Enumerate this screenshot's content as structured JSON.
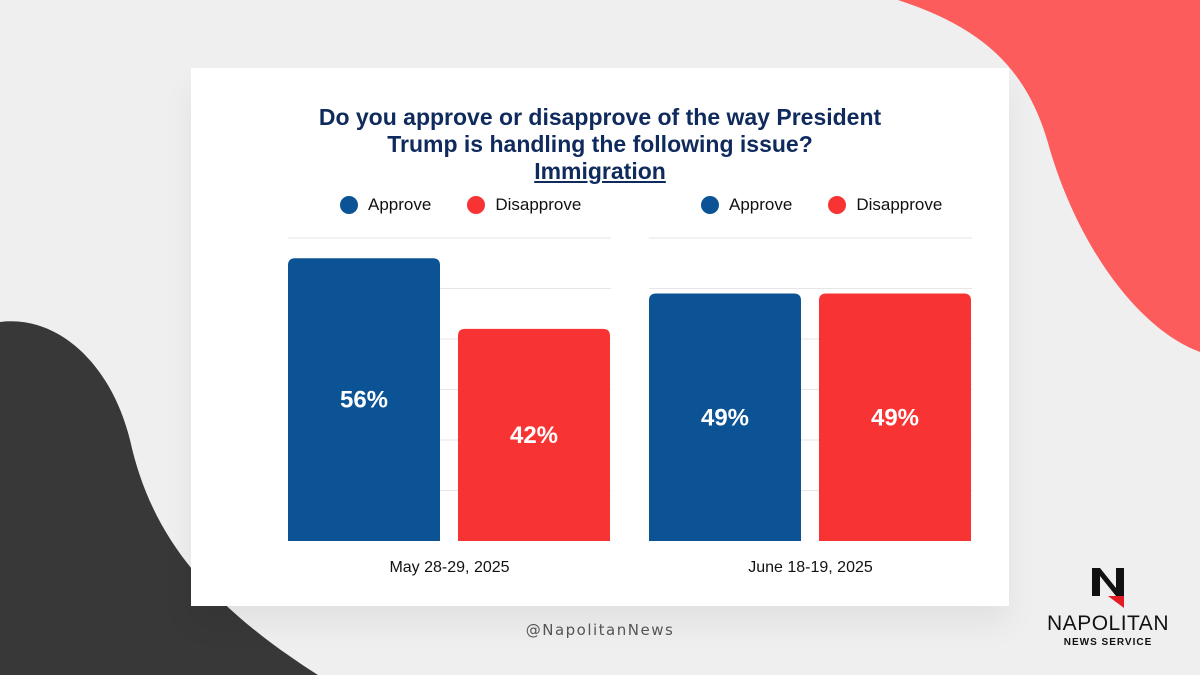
{
  "title": {
    "line1": "Do you approve or disapprove of the way President",
    "line2": "Trump is handling the following issue?",
    "topic": "Immigration"
  },
  "colors": {
    "approve": "#0b5394",
    "disapprove": "#f83333",
    "navy": "#0f2a5c",
    "accent_blob": "#fd5c5c",
    "dark_blob": "#383838"
  },
  "legend": [
    "Approve",
    "Disapprove"
  ],
  "chart_data": [
    {
      "type": "bar",
      "categories": [
        "May 28-29, 2025"
      ],
      "series": [
        {
          "name": "Approve",
          "values": [
            56
          ]
        },
        {
          "name": "Disapprove",
          "values": [
            42
          ]
        }
      ],
      "data_labels": [
        "56%",
        "42%"
      ],
      "ylim": [
        0,
        60
      ],
      "grid": true
    },
    {
      "type": "bar",
      "categories": [
        "June 18-19, 2025"
      ],
      "series": [
        {
          "name": "Approve",
          "values": [
            49
          ]
        },
        {
          "name": "Disapprove",
          "values": [
            49
          ]
        }
      ],
      "data_labels": [
        "49%",
        "49%"
      ],
      "ylim": [
        0,
        60
      ],
      "grid": true
    }
  ],
  "footer": {
    "handle": "@NapolitanNews"
  },
  "logo": {
    "name": "NAPOLITAN",
    "subtitle": "NEWS SERVICE",
    "icon": "napolitan-n-icon"
  }
}
